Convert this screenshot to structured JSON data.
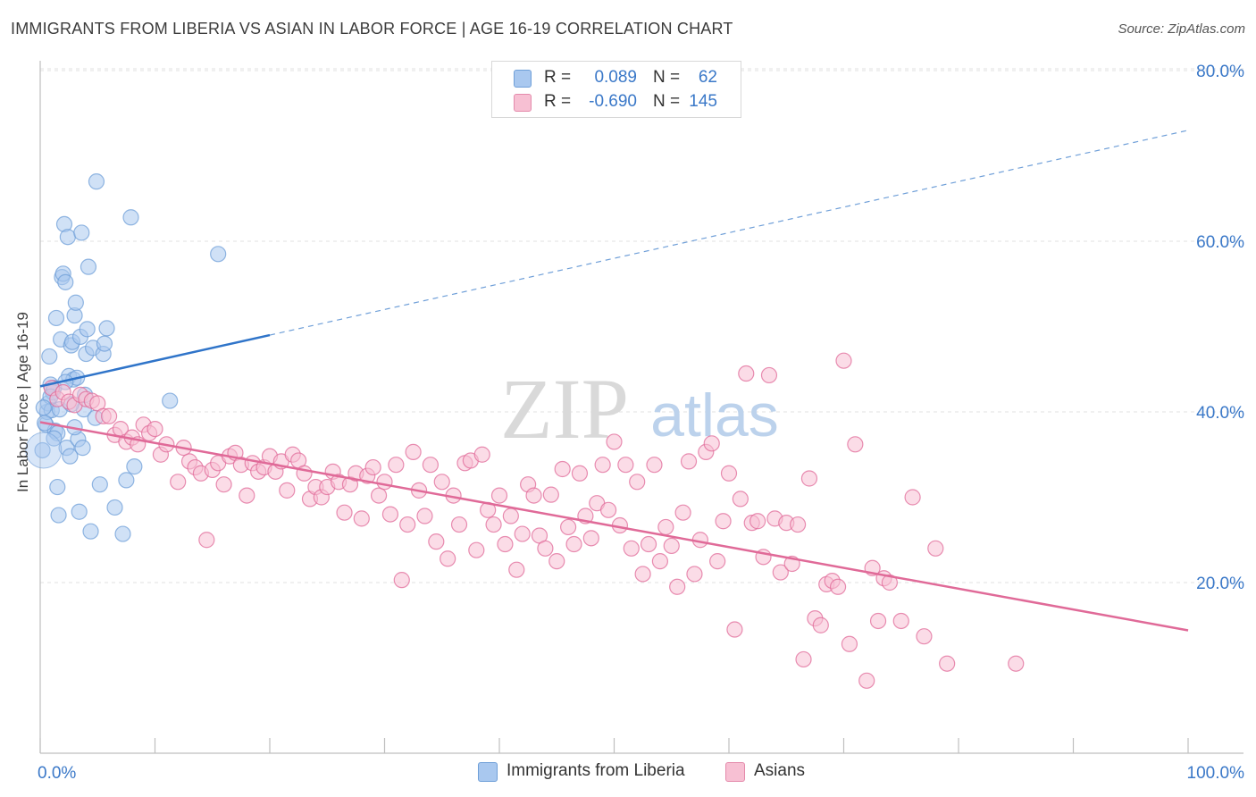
{
  "title": "IMMIGRANTS FROM LIBERIA VS ASIAN IN LABOR FORCE | AGE 16-19 CORRELATION CHART",
  "source": "Source: ZipAtlas.com",
  "watermark": {
    "zip": "ZIP",
    "atlas": "atlas"
  },
  "legend": {
    "r_label": "R =",
    "n_label": "N =",
    "rows": [
      {
        "r": "0.089",
        "n": "62",
        "fill": "#a9c8ef",
        "stroke": "#6f9fd8"
      },
      {
        "r": "-0.690",
        "n": "145",
        "fill": "#f7c0d3",
        "stroke": "#e48aab"
      }
    ]
  },
  "chart_data": {
    "type": "scatter",
    "title": "IMMIGRANTS FROM LIBERIA VS ASIAN IN LABOR FORCE | AGE 16-19 CORRELATION CHART",
    "xlabel": "",
    "ylabel": "In Labor Force | Age 16-19",
    "xlim": [
      0,
      100
    ],
    "ylim": [
      0,
      85
    ],
    "x_ticks": [
      0,
      10,
      20,
      30,
      40,
      50,
      60,
      70,
      80,
      90,
      100
    ],
    "x_tick_labels": [
      {
        "value": 0,
        "label": "0.0%"
      },
      {
        "value": 100,
        "label": "100.0%"
      }
    ],
    "y_ticks": [
      {
        "value": 20,
        "label": "20.0%"
      },
      {
        "value": 40,
        "label": "40.0%"
      },
      {
        "value": 60,
        "label": "60.0%"
      },
      {
        "value": 80,
        "label": "80.0%"
      }
    ],
    "grid": true,
    "legend_position": "top-center",
    "series": [
      {
        "name": "Immigrants from Liberia",
        "color": "#6f9fd8",
        "fill": "#a9c8ef",
        "stats": {
          "R": 0.089,
          "N": 62
        },
        "trendline": {
          "x": [
            0,
            20
          ],
          "y": [
            43.0,
            49.0
          ],
          "dashed_extension_to": [
            100,
            73.0
          ]
        },
        "points": [
          [
            0.2,
            35.5
          ],
          [
            0.5,
            38.5
          ],
          [
            0.6,
            40.0
          ],
          [
            0.7,
            41.0
          ],
          [
            0.8,
            46.5
          ],
          [
            0.9,
            43.2
          ],
          [
            1.0,
            40.2
          ],
          [
            1.1,
            42.3
          ],
          [
            1.2,
            42.8
          ],
          [
            1.3,
            37.8
          ],
          [
            1.4,
            51.0
          ],
          [
            1.5,
            31.2
          ],
          [
            1.6,
            27.9
          ],
          [
            1.7,
            40.3
          ],
          [
            1.8,
            48.5
          ],
          [
            1.9,
            55.8
          ],
          [
            2.0,
            56.2
          ],
          [
            2.1,
            62.0
          ],
          [
            2.2,
            55.2
          ],
          [
            2.3,
            35.8
          ],
          [
            2.4,
            60.5
          ],
          [
            2.5,
            44.2
          ],
          [
            2.6,
            34.8
          ],
          [
            2.7,
            47.8
          ],
          [
            2.8,
            48.2
          ],
          [
            2.9,
            43.8
          ],
          [
            3.0,
            51.3
          ],
          [
            3.1,
            52.8
          ],
          [
            3.2,
            44.0
          ],
          [
            3.3,
            36.8
          ],
          [
            3.4,
            28.3
          ],
          [
            3.5,
            48.8
          ],
          [
            3.6,
            61.0
          ],
          [
            3.7,
            35.8
          ],
          [
            3.8,
            40.3
          ],
          [
            3.9,
            42.0
          ],
          [
            4.0,
            46.8
          ],
          [
            4.1,
            49.7
          ],
          [
            4.2,
            57.0
          ],
          [
            4.4,
            26.0
          ],
          [
            4.6,
            47.5
          ],
          [
            4.8,
            39.3
          ],
          [
            4.9,
            67.0
          ],
          [
            5.2,
            31.5
          ],
          [
            5.5,
            46.8
          ],
          [
            5.6,
            48.0
          ],
          [
            5.8,
            49.8
          ],
          [
            6.5,
            28.8
          ],
          [
            7.2,
            25.7
          ],
          [
            7.5,
            32.0
          ],
          [
            7.9,
            62.8
          ],
          [
            8.2,
            33.6
          ],
          [
            11.3,
            41.3
          ],
          [
            15.5,
            58.5
          ],
          [
            0.4,
            38.7
          ],
          [
            0.9,
            41.8
          ],
          [
            1.5,
            37.5
          ],
          [
            2.2,
            43.5
          ],
          [
            3.0,
            38.2
          ],
          [
            0.3,
            40.5
          ],
          [
            1.2,
            36.9
          ],
          [
            2.7,
            40.9
          ]
        ]
      },
      {
        "name": "Asians",
        "color": "#e06a98",
        "fill": "#f7c0d3",
        "stats": {
          "R": -0.69,
          "N": 145
        },
        "trendline": {
          "x": [
            0,
            100
          ],
          "y": [
            38.8,
            14.4
          ]
        },
        "points": [
          [
            1.0,
            42.8
          ],
          [
            1.5,
            41.5
          ],
          [
            2.0,
            42.3
          ],
          [
            2.5,
            41.2
          ],
          [
            3.0,
            40.8
          ],
          [
            3.5,
            42.0
          ],
          [
            4.0,
            41.5
          ],
          [
            4.5,
            41.3
          ],
          [
            5.0,
            41.0
          ],
          [
            5.5,
            39.5
          ],
          [
            6.0,
            39.5
          ],
          [
            6.5,
            37.3
          ],
          [
            7.0,
            38.0
          ],
          [
            7.5,
            36.5
          ],
          [
            8.0,
            37.0
          ],
          [
            8.5,
            36.2
          ],
          [
            9.0,
            38.5
          ],
          [
            9.5,
            37.5
          ],
          [
            10.0,
            38.0
          ],
          [
            10.5,
            35.0
          ],
          [
            11.0,
            36.2
          ],
          [
            12.0,
            31.8
          ],
          [
            12.5,
            35.8
          ],
          [
            13.0,
            34.2
          ],
          [
            13.5,
            33.5
          ],
          [
            14.0,
            32.8
          ],
          [
            14.5,
            25.0
          ],
          [
            15.0,
            33.2
          ],
          [
            15.5,
            34.0
          ],
          [
            16.0,
            31.5
          ],
          [
            16.5,
            34.8
          ],
          [
            17.0,
            35.2
          ],
          [
            17.5,
            33.8
          ],
          [
            18.0,
            30.2
          ],
          [
            18.5,
            34.0
          ],
          [
            19.0,
            33.0
          ],
          [
            19.5,
            33.5
          ],
          [
            20.0,
            34.8
          ],
          [
            20.5,
            33.0
          ],
          [
            21.0,
            34.2
          ],
          [
            21.5,
            30.8
          ],
          [
            22.0,
            35.0
          ],
          [
            22.5,
            34.3
          ],
          [
            23.0,
            32.8
          ],
          [
            23.5,
            29.8
          ],
          [
            24.0,
            31.2
          ],
          [
            24.5,
            30.0
          ],
          [
            25.0,
            31.2
          ],
          [
            25.5,
            33.0
          ],
          [
            26.0,
            31.8
          ],
          [
            26.5,
            28.2
          ],
          [
            27.0,
            31.5
          ],
          [
            27.5,
            32.8
          ],
          [
            28.0,
            27.5
          ],
          [
            28.5,
            32.5
          ],
          [
            29.0,
            33.5
          ],
          [
            29.5,
            30.2
          ],
          [
            30.0,
            31.8
          ],
          [
            30.5,
            28.0
          ],
          [
            31.0,
            33.8
          ],
          [
            31.5,
            20.3
          ],
          [
            32.0,
            26.8
          ],
          [
            32.5,
            35.3
          ],
          [
            33.0,
            30.8
          ],
          [
            33.5,
            27.8
          ],
          [
            34.0,
            33.8
          ],
          [
            34.5,
            24.8
          ],
          [
            35.0,
            31.8
          ],
          [
            35.5,
            22.8
          ],
          [
            36.0,
            30.2
          ],
          [
            36.5,
            26.8
          ],
          [
            37.0,
            34.0
          ],
          [
            37.5,
            34.3
          ],
          [
            38.0,
            23.8
          ],
          [
            38.5,
            35.0
          ],
          [
            39.0,
            28.5
          ],
          [
            39.5,
            26.8
          ],
          [
            40.0,
            30.2
          ],
          [
            40.5,
            24.5
          ],
          [
            41.0,
            27.8
          ],
          [
            41.5,
            21.5
          ],
          [
            42.0,
            25.7
          ],
          [
            42.5,
            31.5
          ],
          [
            43.0,
            30.2
          ],
          [
            43.5,
            25.5
          ],
          [
            44.0,
            24.0
          ],
          [
            44.5,
            30.3
          ],
          [
            45.0,
            22.5
          ],
          [
            45.5,
            33.3
          ],
          [
            46.0,
            26.5
          ],
          [
            46.5,
            24.5
          ],
          [
            47.0,
            32.8
          ],
          [
            47.5,
            27.8
          ],
          [
            48.0,
            25.2
          ],
          [
            48.5,
            29.3
          ],
          [
            49.0,
            33.8
          ],
          [
            49.5,
            28.5
          ],
          [
            50.0,
            36.5
          ],
          [
            50.5,
            26.7
          ],
          [
            51.0,
            33.8
          ],
          [
            51.5,
            24.0
          ],
          [
            52.0,
            31.8
          ],
          [
            52.5,
            21.0
          ],
          [
            53.0,
            24.5
          ],
          [
            53.5,
            33.8
          ],
          [
            54.0,
            22.5
          ],
          [
            54.5,
            26.5
          ],
          [
            55.0,
            24.3
          ],
          [
            55.5,
            19.5
          ],
          [
            56.0,
            28.2
          ],
          [
            56.5,
            34.2
          ],
          [
            57.0,
            21.0
          ],
          [
            57.5,
            25.0
          ],
          [
            58.0,
            35.3
          ],
          [
            58.5,
            36.3
          ],
          [
            59.0,
            22.5
          ],
          [
            59.5,
            27.2
          ],
          [
            60.0,
            32.8
          ],
          [
            60.5,
            14.5
          ],
          [
            61.0,
            29.8
          ],
          [
            61.5,
            44.5
          ],
          [
            62.0,
            27.0
          ],
          [
            62.5,
            27.2
          ],
          [
            63.0,
            23.0
          ],
          [
            63.5,
            44.3
          ],
          [
            64.0,
            27.5
          ],
          [
            64.5,
            21.2
          ],
          [
            65.0,
            27.0
          ],
          [
            65.5,
            22.2
          ],
          [
            66.0,
            26.8
          ],
          [
            66.5,
            11.0
          ],
          [
            67.0,
            32.2
          ],
          [
            67.5,
            15.8
          ],
          [
            68.0,
            15.0
          ],
          [
            68.5,
            19.8
          ],
          [
            69.0,
            20.2
          ],
          [
            69.5,
            19.5
          ],
          [
            70.0,
            46.0
          ],
          [
            70.5,
            12.8
          ],
          [
            71.0,
            36.2
          ],
          [
            72.0,
            8.5
          ],
          [
            72.5,
            21.7
          ],
          [
            73.0,
            15.5
          ],
          [
            73.5,
            20.5
          ],
          [
            74.0,
            20.0
          ],
          [
            75.0,
            15.5
          ],
          [
            76.0,
            30.0
          ],
          [
            77.0,
            13.7
          ],
          [
            78.0,
            24.0
          ],
          [
            79.0,
            10.5
          ],
          [
            85.0,
            10.5
          ]
        ]
      }
    ]
  }
}
